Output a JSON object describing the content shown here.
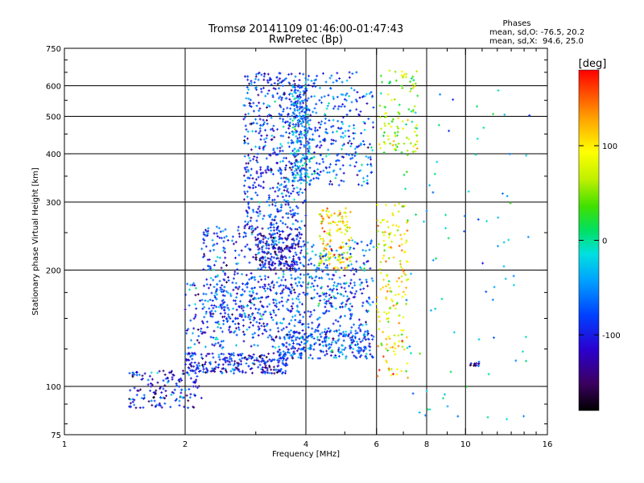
{
  "chart_data": {
    "type": "scatter",
    "title": "Tromsø 20141109 01:46:00-01:47:43",
    "subtitle": "RwPretec (Bp)",
    "xlabel": "Frequency [MHz]",
    "ylabel": "Stationary phase Virtual Height [km]",
    "x_scale": "log",
    "y_scale": "log",
    "xlim": [
      1,
      16
    ],
    "ylim": [
      75,
      750
    ],
    "x_ticks": [
      1,
      2,
      4,
      6,
      8,
      10,
      16
    ],
    "x_tick_labels": [
      "1",
      "2",
      "4",
      "6",
      "8",
      "10",
      "16"
    ],
    "x_minor_ticks": [
      3,
      5,
      7,
      9,
      11,
      12,
      13,
      14,
      15
    ],
    "y_ticks": [
      75,
      100,
      200,
      300,
      400,
      500,
      600,
      750
    ],
    "y_tick_labels": [
      "75",
      "100",
      "200",
      "300",
      "400",
      "500",
      "600",
      "750"
    ],
    "y_minor_ticks": [
      80,
      90,
      125,
      150,
      175,
      250,
      350,
      450,
      550,
      650,
      700
    ],
    "grid": true,
    "legend": {
      "header": "Phases",
      "lines": [
        "mean, sd,O: -76.5, 20.2",
        "mean, sd,X:  94.6, 25.0"
      ]
    },
    "colorbar": {
      "label": "[deg]",
      "range": [
        -180,
        180
      ],
      "ticks": [
        -100,
        0,
        100
      ],
      "tick_labels": [
        "-100",
        "0",
        "100"
      ],
      "colormap": "rainbow (black → purple → blue → cyan → green → yellow → orange → red)"
    },
    "point_groups": [
      {
        "x_min": 1.45,
        "x_max": 2.2,
        "y_min": 88,
        "y_max": 110,
        "phase": -105,
        "n": 150
      },
      {
        "x_min": 2.0,
        "x_max": 3.6,
        "y_min": 108,
        "y_max": 122,
        "phase": -100,
        "n": 260
      },
      {
        "x_min": 3.4,
        "x_max": 5.9,
        "y_min": 118,
        "y_max": 140,
        "phase": -75,
        "n": 240
      },
      {
        "x_min": 2.0,
        "x_max": 5.8,
        "y_min": 125,
        "y_max": 185,
        "phase": -80,
        "n": 420
      },
      {
        "x_min": 2.2,
        "x_max": 4.0,
        "y_min": 145,
        "y_max": 260,
        "phase": -85,
        "n": 420
      },
      {
        "x_min": 3.0,
        "x_max": 3.9,
        "y_min": 200,
        "y_max": 250,
        "phase": -110,
        "n": 180
      },
      {
        "x_min": 2.8,
        "x_max": 4.0,
        "y_min": 250,
        "y_max": 650,
        "phase": -85,
        "n": 560
      },
      {
        "x_min": 3.7,
        "x_max": 4.1,
        "y_min": 330,
        "y_max": 600,
        "phase": -50,
        "n": 180
      },
      {
        "x_min": 4.0,
        "x_max": 5.9,
        "y_min": 330,
        "y_max": 650,
        "phase": -70,
        "n": 280
      },
      {
        "x_min": 4.3,
        "x_max": 5.2,
        "y_min": 200,
        "y_max": 290,
        "phase": 100,
        "n": 140
      },
      {
        "x_min": 4.0,
        "x_max": 5.9,
        "y_min": 160,
        "y_max": 240,
        "phase": -60,
        "n": 160
      },
      {
        "x_min": 6.0,
        "x_max": 7.2,
        "y_min": 105,
        "y_max": 300,
        "phase": 90,
        "n": 170
      },
      {
        "x_min": 6.1,
        "x_max": 7.6,
        "y_min": 400,
        "y_max": 660,
        "phase": 60,
        "n": 110
      },
      {
        "x_min": 7.0,
        "x_max": 14.5,
        "y_min": 80,
        "y_max": 620,
        "phase": -30,
        "n": 85
      },
      {
        "x_min": 10.2,
        "x_max": 10.8,
        "y_min": 113,
        "y_max": 115,
        "phase": -120,
        "n": 12
      }
    ]
  }
}
